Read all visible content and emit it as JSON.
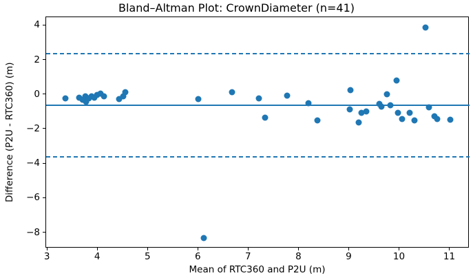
{
  "chart_data": {
    "type": "scatter",
    "title": "Bland–Altman Plot: CrownDiameter (n=41)",
    "xlabel": "Mean of RTC360 and P2U (m)",
    "ylabel": "Difference (P2U - RTC360) (m)",
    "n": 41,
    "xlim": [
      2.97,
      11.39
    ],
    "ylim": [
      -8.89,
      4.49
    ],
    "x_ticks": [
      3,
      4,
      5,
      6,
      7,
      8,
      9,
      10,
      11
    ],
    "y_ticks": [
      4,
      2,
      0,
      -2,
      -4,
      -6,
      -8
    ],
    "mean_diff": -0.61,
    "loa_upper": 2.38,
    "loa_lower": -3.59,
    "grid": false,
    "legend_position": "none",
    "colors": {
      "marker": "#1f77b4",
      "mean_line": "#1f77b4",
      "loa_line": "#1f77b4",
      "spine": "#000000",
      "text": "#000000",
      "background": "#ffffff"
    },
    "points": [
      [
        3.35,
        -0.22
      ],
      [
        3.63,
        -0.15
      ],
      [
        3.7,
        -0.3
      ],
      [
        3.75,
        -0.08
      ],
      [
        3.77,
        -0.42
      ],
      [
        3.82,
        -0.22
      ],
      [
        3.87,
        -0.08
      ],
      [
        3.93,
        -0.15
      ],
      [
        3.98,
        0.0
      ],
      [
        4.05,
        0.06
      ],
      [
        4.12,
        -0.1
      ],
      [
        4.42,
        -0.25
      ],
      [
        4.5,
        -0.08
      ],
      [
        4.55,
        0.13
      ],
      [
        5.99,
        -0.25
      ],
      [
        6.1,
        -8.28
      ],
      [
        6.67,
        0.15
      ],
      [
        7.2,
        -0.22
      ],
      [
        7.33,
        -1.32
      ],
      [
        7.76,
        -0.03
      ],
      [
        8.19,
        -0.47
      ],
      [
        8.37,
        -1.48
      ],
      [
        9.01,
        -0.85
      ],
      [
        9.02,
        0.28
      ],
      [
        9.18,
        -1.62
      ],
      [
        9.24,
        -1.05
      ],
      [
        9.34,
        -0.95
      ],
      [
        9.59,
        -0.54
      ],
      [
        9.64,
        -0.68
      ],
      [
        9.75,
        0.03
      ],
      [
        9.82,
        -0.6
      ],
      [
        9.94,
        0.82
      ],
      [
        9.96,
        -1.06
      ],
      [
        10.05,
        -1.4
      ],
      [
        10.2,
        -1.05
      ],
      [
        10.3,
        -1.5
      ],
      [
        10.51,
        3.88
      ],
      [
        10.58,
        -0.73
      ],
      [
        10.69,
        -1.26
      ],
      [
        10.74,
        -1.42
      ],
      [
        11.0,
        -1.45
      ]
    ]
  }
}
